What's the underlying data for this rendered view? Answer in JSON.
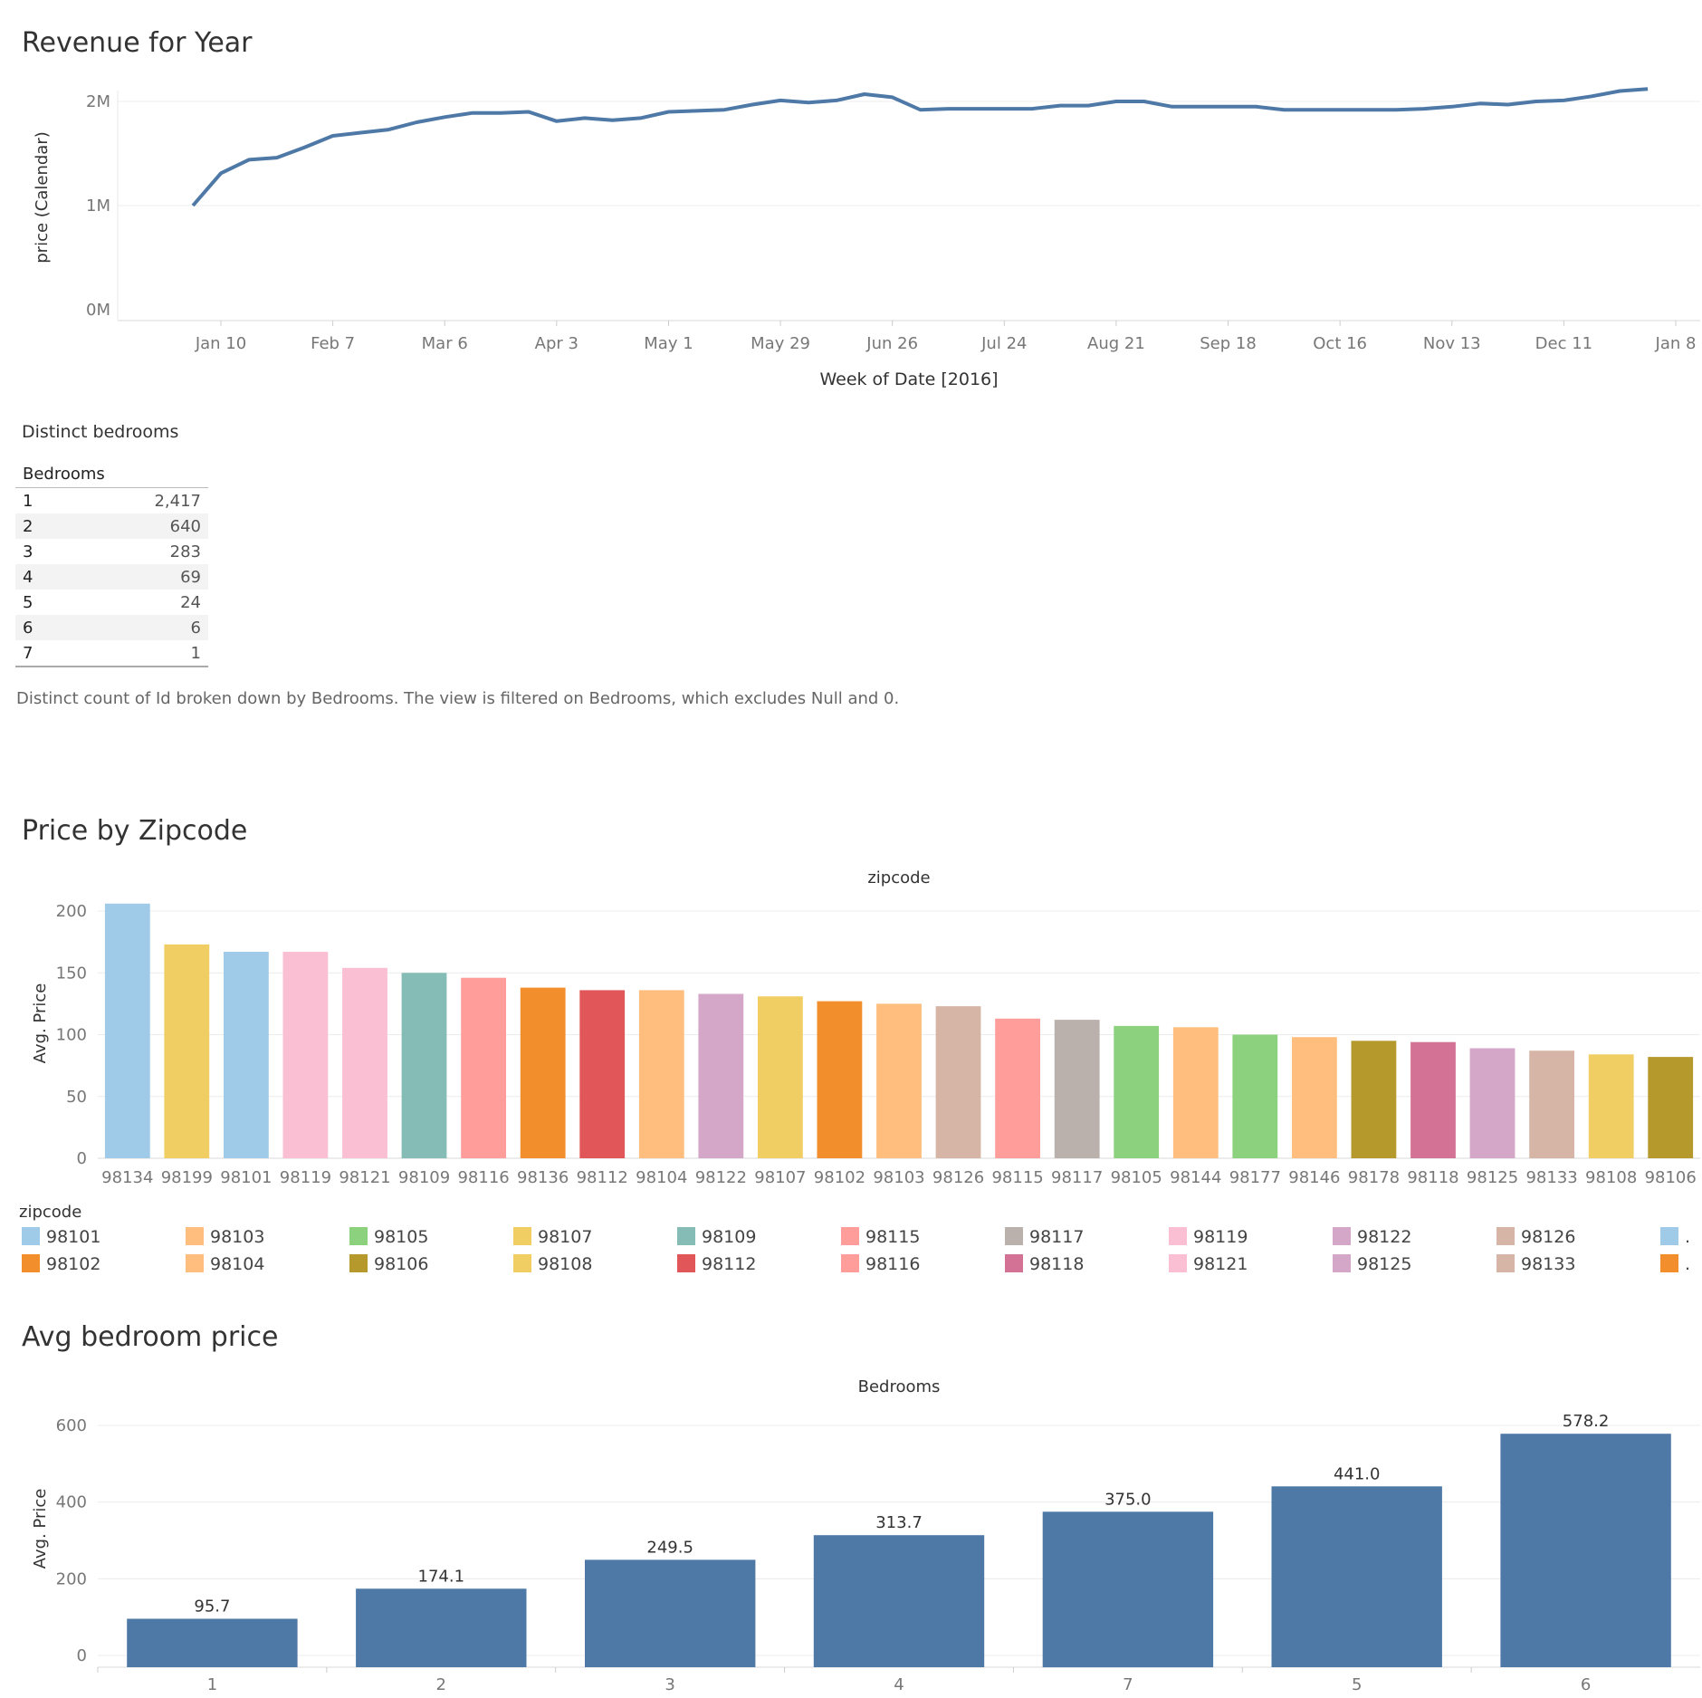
{
  "revenue": {
    "title": "Revenue for Year",
    "chart_data": {
      "type": "line",
      "xlabel": "Week of Date [2016]",
      "ylabel": "price (Calendar)",
      "x_ticks": [
        "Jan 10",
        "Feb 7",
        "Mar 6",
        "Apr 3",
        "May 1",
        "May 29",
        "Jun 26",
        "Jul 24",
        "Aug 21",
        "Sep 18",
        "Oct 16",
        "Nov 13",
        "Dec 11",
        "Jan 8"
      ],
      "y_ticks": [
        "0M",
        "1M",
        "2M"
      ],
      "ylim": [
        0,
        2000000
      ],
      "color": "#4e79a7",
      "grid": true,
      "series": [
        {
          "x": [
            "2016-01-03",
            "2016-01-10",
            "2016-01-17",
            "2016-01-24",
            "2016-01-31",
            "2016-02-07",
            "2016-02-14",
            "2016-02-21",
            "2016-02-28",
            "2016-03-06",
            "2016-03-13",
            "2016-03-20",
            "2016-03-27",
            "2016-04-03",
            "2016-04-10",
            "2016-04-17",
            "2016-04-24",
            "2016-05-01",
            "2016-05-08",
            "2016-05-15",
            "2016-05-22",
            "2016-05-29",
            "2016-06-05",
            "2016-06-12",
            "2016-06-19",
            "2016-06-26",
            "2016-07-03",
            "2016-07-10",
            "2016-07-17",
            "2016-07-24",
            "2016-07-31",
            "2016-08-07",
            "2016-08-14",
            "2016-08-21",
            "2016-08-28",
            "2016-09-04",
            "2016-09-11",
            "2016-09-18",
            "2016-09-25",
            "2016-10-02",
            "2016-10-09",
            "2016-10-16",
            "2016-10-23",
            "2016-10-30",
            "2016-11-06",
            "2016-11-13",
            "2016-11-20",
            "2016-11-27",
            "2016-12-04",
            "2016-12-11",
            "2016-12-18",
            "2016-12-25",
            "2017-01-01"
          ],
          "y": [
            1000000,
            1310000,
            1440000,
            1460000,
            1560000,
            1670000,
            1700000,
            1730000,
            1800000,
            1850000,
            1890000,
            1890000,
            1900000,
            1810000,
            1840000,
            1820000,
            1840000,
            1900000,
            1910000,
            1920000,
            1970000,
            2010000,
            1990000,
            2010000,
            2070000,
            2040000,
            1920000,
            1930000,
            1930000,
            1930000,
            1930000,
            1960000,
            1960000,
            2000000,
            2000000,
            1950000,
            1950000,
            1950000,
            1950000,
            1920000,
            1920000,
            1920000,
            1920000,
            1920000,
            1930000,
            1950000,
            1980000,
            1970000,
            2000000,
            2010000,
            2050000,
            2100000,
            2120000
          ]
        }
      ]
    }
  },
  "bedrooms_table": {
    "title": "Distinct bedrooms",
    "header": "Bedrooms",
    "rows": [
      {
        "key": "1",
        "value": "2,417"
      },
      {
        "key": "2",
        "value": "640"
      },
      {
        "key": "3",
        "value": "283"
      },
      {
        "key": "4",
        "value": "69"
      },
      {
        "key": "5",
        "value": "24"
      },
      {
        "key": "6",
        "value": "6"
      },
      {
        "key": "7",
        "value": "1"
      }
    ],
    "caption": "Distinct count of Id broken down by Bedrooms. The view is filtered on Bedrooms, which excludes Null and 0."
  },
  "zipcode": {
    "title": "Price by Zipcode",
    "chart_data": {
      "type": "bar",
      "header": "zipcode",
      "ylabel": "Avg. Price",
      "y_ticks": [
        0,
        50,
        100,
        150,
        200
      ],
      "ylim": [
        0,
        210
      ],
      "grid": true,
      "categories": [
        "98134",
        "98199",
        "98101",
        "98119",
        "98121",
        "98109",
        "98116",
        "98136",
        "98112",
        "98104",
        "98122",
        "98107",
        "98102",
        "98103",
        "98126",
        "98115",
        "98117",
        "98105",
        "98144",
        "98177",
        "98146",
        "98178",
        "98118",
        "98125",
        "98133",
        "98108",
        "98106"
      ],
      "values": [
        206,
        173,
        167,
        167,
        154,
        150,
        146,
        138,
        136,
        136,
        133,
        131,
        127,
        125,
        123,
        113,
        112,
        107,
        106,
        100,
        98,
        95,
        94,
        89,
        87,
        84,
        82
      ],
      "colors": [
        "#a0cbe8",
        "#f1ce63",
        "#a0cbe8",
        "#fabfd2",
        "#fabfd2",
        "#86bcb6",
        "#ff9d9a",
        "#f28e2b",
        "#e15759",
        "#ffbe7d",
        "#d4a6c8",
        "#f1ce63",
        "#f28e2b",
        "#ffbe7d",
        "#d7b5a6",
        "#ff9d9a",
        "#bab0ac",
        "#8cd17d",
        "#ffbe7d",
        "#8cd17d",
        "#ffbe7d",
        "#b6992d",
        "#d37295",
        "#d4a6c8",
        "#d7b5a6",
        "#f1ce63",
        "#b6992d"
      ]
    },
    "legend_title": "zipcode",
    "legend": [
      {
        "label": "98101",
        "color": "#a0cbe8"
      },
      {
        "label": "98102",
        "color": "#f28e2b"
      },
      {
        "label": "98103",
        "color": "#ffbe7d"
      },
      {
        "label": "98104",
        "color": "#ffbe7d"
      },
      {
        "label": "98105",
        "color": "#8cd17d"
      },
      {
        "label": "98106",
        "color": "#b6992d"
      },
      {
        "label": "98107",
        "color": "#f1ce63"
      },
      {
        "label": "98108",
        "color": "#f1ce63"
      },
      {
        "label": "98109",
        "color": "#86bcb6"
      },
      {
        "label": "98112",
        "color": "#e15759"
      },
      {
        "label": "98115",
        "color": "#ff9d9a"
      },
      {
        "label": "98116",
        "color": "#ff9d9a"
      },
      {
        "label": "98117",
        "color": "#bab0ac"
      },
      {
        "label": "98118",
        "color": "#d37295"
      },
      {
        "label": "98119",
        "color": "#fabfd2"
      },
      {
        "label": "98121",
        "color": "#fabfd2"
      },
      {
        "label": "98122",
        "color": "#d4a6c8"
      },
      {
        "label": "98125",
        "color": "#d4a6c8"
      },
      {
        "label": "98126",
        "color": "#d7b5a6"
      },
      {
        "label": "98133",
        "color": "#d7b5a6"
      },
      {
        "label": ".",
        "color": "#a0cbe8"
      },
      {
        "label": ".",
        "color": "#f28e2b"
      }
    ]
  },
  "bedroom_price": {
    "title": "Avg bedroom price",
    "chart_data": {
      "type": "bar",
      "header": "Bedrooms",
      "ylabel": "Avg. Price",
      "y_ticks": [
        0,
        200,
        400,
        600
      ],
      "ylim": [
        0,
        650
      ],
      "grid": true,
      "color": "#4e79a7",
      "categories": [
        "1",
        "2",
        "3",
        "4",
        "7",
        "5",
        "6"
      ],
      "values": [
        95.7,
        174.1,
        249.5,
        313.7,
        375.0,
        441.0,
        578.2
      ],
      "labels": [
        "95.7",
        "174.1",
        "249.5",
        "313.7",
        "375.0",
        "441.0",
        "578.2"
      ]
    }
  }
}
